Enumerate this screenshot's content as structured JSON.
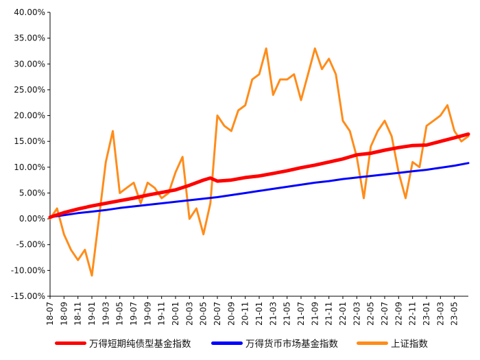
{
  "chart_data": {
    "type": "line",
    "title": "",
    "xlabel": "",
    "ylabel": "",
    "ylim": [
      -0.15,
      0.4
    ],
    "y_ticks": [
      "40.00%",
      "35.00%",
      "30.00%",
      "25.00%",
      "20.00%",
      "15.00%",
      "10.00%",
      "5.00%",
      "0.00%",
      "-5.00%",
      "-10.00%",
      "-15.00%"
    ],
    "y_tick_values": [
      0.4,
      0.35,
      0.3,
      0.25,
      0.2,
      0.15,
      0.1,
      0.05,
      0.0,
      -0.05,
      -0.1,
      -0.15
    ],
    "x_ticks": [
      "18-07",
      "18-09",
      "18-11",
      "19-01",
      "19-03",
      "19-05",
      "19-07",
      "19-09",
      "19-11",
      "20-01",
      "20-03",
      "20-05",
      "20-07",
      "20-09",
      "20-11",
      "21-01",
      "21-03",
      "21-05",
      "21-07",
      "21-09",
      "21-11",
      "22-01",
      "22-03",
      "22-05",
      "22-07",
      "22-09",
      "22-11",
      "23-01",
      "23-03",
      "23-05"
    ],
    "x_range": [
      "2018-07",
      "2023-07"
    ],
    "grid": false,
    "legend_position": "bottom",
    "series": [
      {
        "name": "万得短期纯债型基金指数",
        "color": "#ff0000",
        "x": [
          "18-07",
          "18-09",
          "18-11",
          "19-01",
          "19-03",
          "19-05",
          "19-07",
          "19-09",
          "19-11",
          "20-01",
          "20-03",
          "20-05",
          "20-06",
          "20-07",
          "20-09",
          "20-11",
          "21-01",
          "21-03",
          "21-05",
          "21-07",
          "21-09",
          "21-11",
          "22-01",
          "22-03",
          "22-05",
          "22-07",
          "22-09",
          "22-11",
          "23-01",
          "23-03",
          "23-05",
          "23-07"
        ],
        "values": [
          0.003,
          0.012,
          0.019,
          0.025,
          0.03,
          0.035,
          0.04,
          0.046,
          0.051,
          0.056,
          0.065,
          0.075,
          0.079,
          0.073,
          0.075,
          0.08,
          0.083,
          0.088,
          0.093,
          0.099,
          0.104,
          0.11,
          0.116,
          0.124,
          0.127,
          0.133,
          0.138,
          0.142,
          0.143,
          0.15,
          0.157,
          0.164
        ]
      },
      {
        "name": "万得货币市场基金指数",
        "color": "#0000ff",
        "x": [
          "18-07",
          "18-09",
          "18-11",
          "19-01",
          "19-03",
          "19-05",
          "19-07",
          "19-09",
          "19-11",
          "20-01",
          "20-03",
          "20-05",
          "20-07",
          "20-09",
          "20-11",
          "21-01",
          "21-03",
          "21-05",
          "21-07",
          "21-09",
          "21-11",
          "22-01",
          "22-03",
          "22-05",
          "22-07",
          "22-09",
          "22-11",
          "23-01",
          "23-03",
          "23-05",
          "23-07"
        ],
        "values": [
          0.003,
          0.007,
          0.011,
          0.014,
          0.017,
          0.021,
          0.024,
          0.027,
          0.03,
          0.033,
          0.036,
          0.039,
          0.042,
          0.046,
          0.05,
          0.054,
          0.058,
          0.062,
          0.066,
          0.07,
          0.073,
          0.077,
          0.08,
          0.083,
          0.086,
          0.089,
          0.092,
          0.095,
          0.099,
          0.103,
          0.108
        ]
      },
      {
        "name": "上证指数",
        "color": "#ff8c1a",
        "x": [
          "18-07",
          "18-08",
          "18-09",
          "18-10",
          "18-11",
          "18-12",
          "19-01",
          "19-02",
          "19-03",
          "19-04",
          "19-05",
          "19-06",
          "19-07",
          "19-08",
          "19-09",
          "19-10",
          "19-11",
          "19-12",
          "20-01",
          "20-02",
          "20-03",
          "20-04",
          "20-05",
          "20-06",
          "20-07",
          "20-08",
          "20-09",
          "20-10",
          "20-11",
          "20-12",
          "21-01",
          "21-02",
          "21-03",
          "21-04",
          "21-05",
          "21-06",
          "21-07",
          "21-08",
          "21-09",
          "21-10",
          "21-11",
          "21-12",
          "22-01",
          "22-02",
          "22-03",
          "22-04",
          "22-05",
          "22-06",
          "22-07",
          "22-08",
          "22-09",
          "22-10",
          "22-11",
          "22-12",
          "23-01",
          "23-02",
          "23-03",
          "23-04",
          "23-05",
          "23-06",
          "23-07"
        ],
        "values": [
          0.0,
          0.02,
          -0.03,
          -0.06,
          -0.08,
          -0.06,
          -0.11,
          0.0,
          0.11,
          0.17,
          0.05,
          0.06,
          0.07,
          0.03,
          0.07,
          0.06,
          0.04,
          0.05,
          0.09,
          0.12,
          0.0,
          0.02,
          -0.03,
          0.03,
          0.2,
          0.18,
          0.17,
          0.21,
          0.22,
          0.27,
          0.28,
          0.33,
          0.24,
          0.27,
          0.27,
          0.28,
          0.23,
          0.28,
          0.33,
          0.29,
          0.31,
          0.28,
          0.19,
          0.17,
          0.12,
          0.04,
          0.14,
          0.17,
          0.19,
          0.16,
          0.09,
          0.04,
          0.11,
          0.1,
          0.18,
          0.19,
          0.2,
          0.22,
          0.17,
          0.15,
          0.16
        ]
      }
    ]
  }
}
